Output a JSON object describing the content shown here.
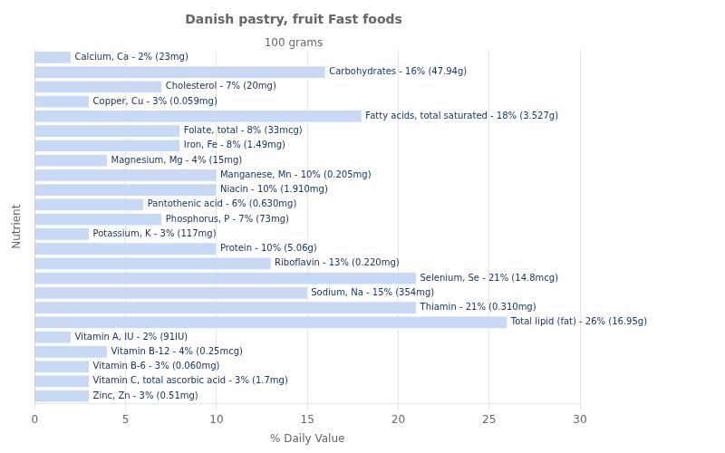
{
  "chart_data": {
    "type": "bar",
    "orientation": "horizontal",
    "title": "Danish pastry, fruit Fast foods",
    "subtitle": "100 grams",
    "xlabel": "% Daily Value",
    "ylabel": "Nutrient",
    "categories": [
      "Calcium, Ca - 2% (23mg)",
      "Carbohydrates - 16% (47.94g)",
      "Cholesterol - 7% (20mg)",
      "Copper, Cu - 3% (0.059mg)",
      "Fatty acids, total saturated - 18% (3.527g)",
      "Folate, total - 8% (33mcg)",
      "Iron, Fe - 8% (1.49mg)",
      "Magnesium, Mg - 4% (15mg)",
      "Manganese, Mn - 10% (0.205mg)",
      "Niacin - 10% (1.910mg)",
      "Pantothenic acid - 6% (0.630mg)",
      "Phosphorus, P - 7% (73mg)",
      "Potassium, K - 3% (117mg)",
      "Protein - 10% (5.06g)",
      "Riboflavin - 13% (0.220mg)",
      "Selenium, Se - 21% (14.8mcg)",
      "Sodium, Na - 15% (354mg)",
      "Thiamin - 21% (0.310mg)",
      "Total lipid (fat) - 26% (16.95g)",
      "Vitamin A, IU - 2% (91IU)",
      "Vitamin B-12 - 4% (0.25mcg)",
      "Vitamin B-6 - 3% (0.060mg)",
      "Vitamin C, total ascorbic acid - 3% (1.7mg)",
      "Zinc, Zn - 3% (0.51mg)"
    ],
    "values": [
      2,
      16,
      7,
      3,
      18,
      8,
      8,
      4,
      10,
      10,
      6,
      7,
      3,
      10,
      13,
      21,
      15,
      21,
      26,
      2,
      4,
      3,
      3,
      3
    ],
    "color": "#c8d9f5",
    "xlim": [
      0,
      30
    ],
    "xticks": [
      0,
      5,
      10,
      15,
      20,
      25,
      30
    ],
    "grid": true,
    "tick_labels": "x"
  }
}
